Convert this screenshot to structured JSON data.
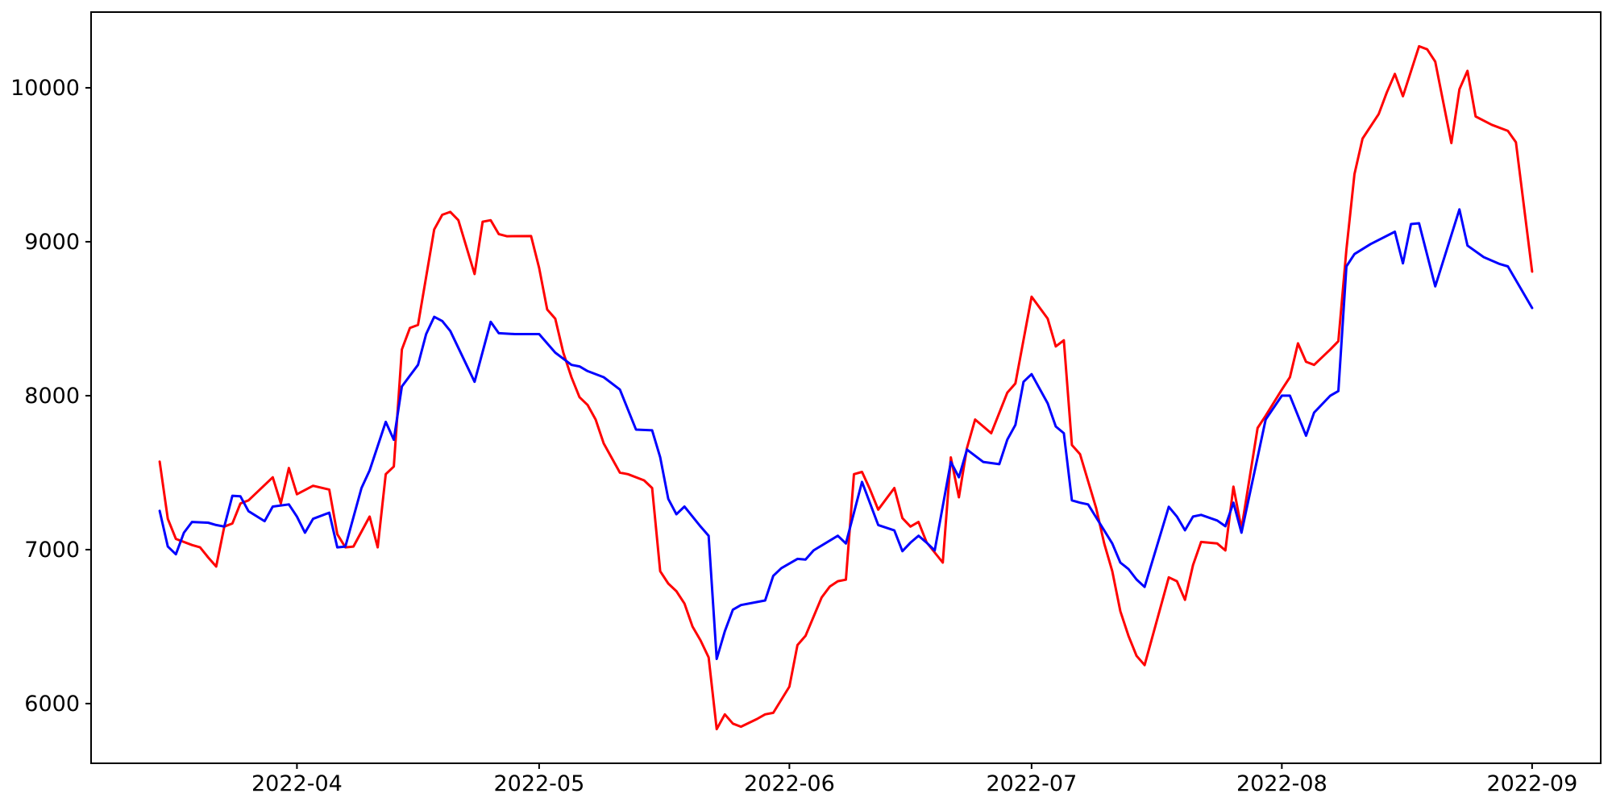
{
  "figure": {
    "background": "#ffffff",
    "plot_bg": "#ffffff",
    "spine_color": "#000000",
    "tick_color": "#000000"
  },
  "chart_data": {
    "type": "line",
    "title": "",
    "xlabel": "",
    "ylabel": "",
    "grid": false,
    "legend": null,
    "x_axis": {
      "ticks": [
        {
          "label": "2022-04",
          "date": "2022-04-01"
        },
        {
          "label": "2022-05",
          "date": "2022-05-01"
        },
        {
          "label": "2022-06",
          "date": "2022-06-01"
        },
        {
          "label": "2022-07",
          "date": "2022-07-01"
        },
        {
          "label": "2022-08",
          "date": "2022-08-01"
        },
        {
          "label": "2022-09",
          "date": "2022-09-01"
        }
      ],
      "data_start": "2022-03-15",
      "data_end": "2022-09-01",
      "margin_fraction": 0.05
    },
    "y_axis": {
      "ticks": [
        6000,
        7000,
        8000,
        9000,
        10000
      ],
      "data_min": 5834,
      "data_max": 10276,
      "margin_fraction": 0.05
    },
    "series": [
      {
        "name": "red-series",
        "color": "#ff0000",
        "points": [
          [
            "2022-03-15",
            7572
          ],
          [
            "2022-03-16",
            7200
          ],
          [
            "2022-03-17",
            7070
          ],
          [
            "2022-03-19",
            7030
          ],
          [
            "2022-03-20",
            7015
          ],
          [
            "2022-03-21",
            6950
          ],
          [
            "2022-03-22",
            6890
          ],
          [
            "2022-03-23",
            7150
          ],
          [
            "2022-03-24",
            7170
          ],
          [
            "2022-03-25",
            7300
          ],
          [
            "2022-03-26",
            7320
          ],
          [
            "2022-03-29",
            7470
          ],
          [
            "2022-03-30",
            7300
          ],
          [
            "2022-03-31",
            7530
          ],
          [
            "2022-04-01",
            7360
          ],
          [
            "2022-04-03",
            7415
          ],
          [
            "2022-04-05",
            7390
          ],
          [
            "2022-04-06",
            7100
          ],
          [
            "2022-04-07",
            7015
          ],
          [
            "2022-04-08",
            7020
          ],
          [
            "2022-04-10",
            7215
          ],
          [
            "2022-04-11",
            7015
          ],
          [
            "2022-04-12",
            7490
          ],
          [
            "2022-04-13",
            7540
          ],
          [
            "2022-04-14",
            8300
          ],
          [
            "2022-04-15",
            8440
          ],
          [
            "2022-04-16",
            8460
          ],
          [
            "2022-04-18",
            9080
          ],
          [
            "2022-04-19",
            9175
          ],
          [
            "2022-04-20",
            9194
          ],
          [
            "2022-04-21",
            9140
          ],
          [
            "2022-04-23",
            8790
          ],
          [
            "2022-04-24",
            9130
          ],
          [
            "2022-04-25",
            9140
          ],
          [
            "2022-04-26",
            9050
          ],
          [
            "2022-04-27",
            9036
          ],
          [
            "2022-04-30",
            9037
          ],
          [
            "2022-05-01",
            8830
          ],
          [
            "2022-05-02",
            8560
          ],
          [
            "2022-05-03",
            8500
          ],
          [
            "2022-05-04",
            8280
          ],
          [
            "2022-05-05",
            8120
          ],
          [
            "2022-05-06",
            7990
          ],
          [
            "2022-05-07",
            7940
          ],
          [
            "2022-05-08",
            7845
          ],
          [
            "2022-05-09",
            7690
          ],
          [
            "2022-05-11",
            7500
          ],
          [
            "2022-05-12",
            7490
          ],
          [
            "2022-05-14",
            7450
          ],
          [
            "2022-05-15",
            7400
          ],
          [
            "2022-05-16",
            6860
          ],
          [
            "2022-05-17",
            6780
          ],
          [
            "2022-05-18",
            6730
          ],
          [
            "2022-05-19",
            6650
          ],
          [
            "2022-05-20",
            6500
          ],
          [
            "2022-05-21",
            6410
          ],
          [
            "2022-05-22",
            6300
          ],
          [
            "2022-05-23",
            5834
          ],
          [
            "2022-05-24",
            5930
          ],
          [
            "2022-05-25",
            5870
          ],
          [
            "2022-05-26",
            5850
          ],
          [
            "2022-05-28",
            5900
          ],
          [
            "2022-05-29",
            5930
          ],
          [
            "2022-05-30",
            5940
          ],
          [
            "2022-06-01",
            6110
          ],
          [
            "2022-06-02",
            6380
          ],
          [
            "2022-06-03",
            6440
          ],
          [
            "2022-06-05",
            6690
          ],
          [
            "2022-06-06",
            6760
          ],
          [
            "2022-06-07",
            6795
          ],
          [
            "2022-06-08",
            6805
          ],
          [
            "2022-06-09",
            7490
          ],
          [
            "2022-06-10",
            7505
          ],
          [
            "2022-06-11",
            7390
          ],
          [
            "2022-06-12",
            7260
          ],
          [
            "2022-06-14",
            7400
          ],
          [
            "2022-06-15",
            7205
          ],
          [
            "2022-06-16",
            7150
          ],
          [
            "2022-06-17",
            7180
          ],
          [
            "2022-06-18",
            7047
          ],
          [
            "2022-06-20",
            6916
          ],
          [
            "2022-06-21",
            7599
          ],
          [
            "2022-06-22",
            7340
          ],
          [
            "2022-06-23",
            7660
          ],
          [
            "2022-06-24",
            7845
          ],
          [
            "2022-06-26",
            7756
          ],
          [
            "2022-06-28",
            8020
          ],
          [
            "2022-06-29",
            8080
          ],
          [
            "2022-07-01",
            8643
          ],
          [
            "2022-07-03",
            8500
          ],
          [
            "2022-07-04",
            8320
          ],
          [
            "2022-07-05",
            8360
          ],
          [
            "2022-07-06",
            7680
          ],
          [
            "2022-07-07",
            7620
          ],
          [
            "2022-07-09",
            7270
          ],
          [
            "2022-07-10",
            7040
          ],
          [
            "2022-07-11",
            6860
          ],
          [
            "2022-07-12",
            6600
          ],
          [
            "2022-07-13",
            6440
          ],
          [
            "2022-07-14",
            6310
          ],
          [
            "2022-07-15",
            6250
          ],
          [
            "2022-07-18",
            6820
          ],
          [
            "2022-07-19",
            6795
          ],
          [
            "2022-07-20",
            6674
          ],
          [
            "2022-07-21",
            6900
          ],
          [
            "2022-07-22",
            7050
          ],
          [
            "2022-07-24",
            7040
          ],
          [
            "2022-07-25",
            6995
          ],
          [
            "2022-07-26",
            7409
          ],
          [
            "2022-07-27",
            7136
          ],
          [
            "2022-07-29",
            7790
          ],
          [
            "2022-07-30",
            7870
          ],
          [
            "2022-08-01",
            8040
          ],
          [
            "2022-08-02",
            8120
          ],
          [
            "2022-08-03",
            8340
          ],
          [
            "2022-08-04",
            8220
          ],
          [
            "2022-08-05",
            8200
          ],
          [
            "2022-08-07",
            8300
          ],
          [
            "2022-08-08",
            8354
          ],
          [
            "2022-08-09",
            8950
          ],
          [
            "2022-08-10",
            9440
          ],
          [
            "2022-08-11",
            9670
          ],
          [
            "2022-08-13",
            9830
          ],
          [
            "2022-08-14",
            9970
          ],
          [
            "2022-08-15",
            10090
          ],
          [
            "2022-08-16",
            9945
          ],
          [
            "2022-08-18",
            10270
          ],
          [
            "2022-08-19",
            10250
          ],
          [
            "2022-08-20",
            10170
          ],
          [
            "2022-08-22",
            9641
          ],
          [
            "2022-08-23",
            9990
          ],
          [
            "2022-08-24",
            10110
          ],
          [
            "2022-08-25",
            9814
          ],
          [
            "2022-08-27",
            9760
          ],
          [
            "2022-08-29",
            9720
          ],
          [
            "2022-08-30",
            9646
          ],
          [
            "2022-09-01",
            8806
          ]
        ]
      },
      {
        "name": "blue-series",
        "color": "#0000ff",
        "points": [
          [
            "2022-03-15",
            7252
          ],
          [
            "2022-03-16",
            7020
          ],
          [
            "2022-03-17",
            6970
          ],
          [
            "2022-03-18",
            7110
          ],
          [
            "2022-03-19",
            7180
          ],
          [
            "2022-03-21",
            7175
          ],
          [
            "2022-03-22",
            7160
          ],
          [
            "2022-03-23",
            7150
          ],
          [
            "2022-03-24",
            7350
          ],
          [
            "2022-03-25",
            7346
          ],
          [
            "2022-03-26",
            7250
          ],
          [
            "2022-03-28",
            7185
          ],
          [
            "2022-03-29",
            7280
          ],
          [
            "2022-03-31",
            7294
          ],
          [
            "2022-04-01",
            7215
          ],
          [
            "2022-04-02",
            7110
          ],
          [
            "2022-04-03",
            7200
          ],
          [
            "2022-04-05",
            7240
          ],
          [
            "2022-04-06",
            7015
          ],
          [
            "2022-04-07",
            7020
          ],
          [
            "2022-04-09",
            7400
          ],
          [
            "2022-04-10",
            7515
          ],
          [
            "2022-04-12",
            7830
          ],
          [
            "2022-04-13",
            7714
          ],
          [
            "2022-04-14",
            8060
          ],
          [
            "2022-04-16",
            8200
          ],
          [
            "2022-04-17",
            8400
          ],
          [
            "2022-04-18",
            8512
          ],
          [
            "2022-04-19",
            8485
          ],
          [
            "2022-04-20",
            8420
          ],
          [
            "2022-04-23",
            8090
          ],
          [
            "2022-04-25",
            8480
          ],
          [
            "2022-04-26",
            8406
          ],
          [
            "2022-04-28",
            8400
          ],
          [
            "2022-04-30",
            8400
          ],
          [
            "2022-05-01",
            8400
          ],
          [
            "2022-05-03",
            8280
          ],
          [
            "2022-05-05",
            8200
          ],
          [
            "2022-05-06",
            8190
          ],
          [
            "2022-05-07",
            8160
          ],
          [
            "2022-05-09",
            8120
          ],
          [
            "2022-05-11",
            8040
          ],
          [
            "2022-05-13",
            7780
          ],
          [
            "2022-05-15",
            7775
          ],
          [
            "2022-05-16",
            7600
          ],
          [
            "2022-05-17",
            7330
          ],
          [
            "2022-05-18",
            7230
          ],
          [
            "2022-05-19",
            7280
          ],
          [
            "2022-05-21",
            7150
          ],
          [
            "2022-05-22",
            7090
          ],
          [
            "2022-05-23",
            6290
          ],
          [
            "2022-05-24",
            6470
          ],
          [
            "2022-05-25",
            6610
          ],
          [
            "2022-05-26",
            6640
          ],
          [
            "2022-05-28",
            6660
          ],
          [
            "2022-05-29",
            6670
          ],
          [
            "2022-05-30",
            6830
          ],
          [
            "2022-05-31",
            6880
          ],
          [
            "2022-06-02",
            6940
          ],
          [
            "2022-06-03",
            6935
          ],
          [
            "2022-06-04",
            6995
          ],
          [
            "2022-06-07",
            7090
          ],
          [
            "2022-06-08",
            7040
          ],
          [
            "2022-06-10",
            7440
          ],
          [
            "2022-06-12",
            7160
          ],
          [
            "2022-06-14",
            7125
          ],
          [
            "2022-06-15",
            6990
          ],
          [
            "2022-06-16",
            7045
          ],
          [
            "2022-06-17",
            7090
          ],
          [
            "2022-06-18",
            7045
          ],
          [
            "2022-06-19",
            6995
          ],
          [
            "2022-06-21",
            7570
          ],
          [
            "2022-06-22",
            7470
          ],
          [
            "2022-06-23",
            7650
          ],
          [
            "2022-06-25",
            7570
          ],
          [
            "2022-06-27",
            7555
          ],
          [
            "2022-06-28",
            7715
          ],
          [
            "2022-06-29",
            7810
          ],
          [
            "2022-06-30",
            8090
          ],
          [
            "2022-07-01",
            8140
          ],
          [
            "2022-07-03",
            7950
          ],
          [
            "2022-07-04",
            7800
          ],
          [
            "2022-07-05",
            7756
          ],
          [
            "2022-07-06",
            7320
          ],
          [
            "2022-07-07",
            7305
          ],
          [
            "2022-07-08",
            7294
          ],
          [
            "2022-07-11",
            7040
          ],
          [
            "2022-07-12",
            6916
          ],
          [
            "2022-07-13",
            6874
          ],
          [
            "2022-07-14",
            6806
          ],
          [
            "2022-07-15",
            6758
          ],
          [
            "2022-07-18",
            7278
          ],
          [
            "2022-07-19",
            7215
          ],
          [
            "2022-07-20",
            7126
          ],
          [
            "2022-07-21",
            7215
          ],
          [
            "2022-07-22",
            7226
          ],
          [
            "2022-07-24",
            7189
          ],
          [
            "2022-07-25",
            7152
          ],
          [
            "2022-07-26",
            7305
          ],
          [
            "2022-07-27",
            7110
          ],
          [
            "2022-07-30",
            7845
          ],
          [
            "2022-08-01",
            8000
          ],
          [
            "2022-08-02",
            8000
          ],
          [
            "2022-08-04",
            7740
          ],
          [
            "2022-08-05",
            7890
          ],
          [
            "2022-08-07",
            8000
          ],
          [
            "2022-08-08",
            8030
          ],
          [
            "2022-08-09",
            8840
          ],
          [
            "2022-08-10",
            8920
          ],
          [
            "2022-08-12",
            8985
          ],
          [
            "2022-08-15",
            9065
          ],
          [
            "2022-08-16",
            8860
          ],
          [
            "2022-08-17",
            9115
          ],
          [
            "2022-08-18",
            9120
          ],
          [
            "2022-08-20",
            8710
          ],
          [
            "2022-08-23",
            9210
          ],
          [
            "2022-08-24",
            8975
          ],
          [
            "2022-08-26",
            8900
          ],
          [
            "2022-08-28",
            8855
          ],
          [
            "2022-08-29",
            8840
          ],
          [
            "2022-09-01",
            8570
          ]
        ]
      }
    ]
  }
}
